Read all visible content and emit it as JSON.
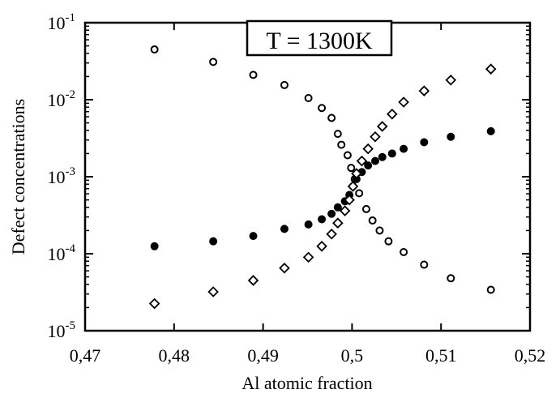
{
  "chart_data": {
    "type": "scatter",
    "xlabel": "Al atomic fraction",
    "ylabel": "Defect concentrations",
    "x_scale": "linear",
    "y_scale": "log",
    "xlim": [
      0.47,
      0.52
    ],
    "ylim_exp": [
      -5,
      -1
    ],
    "x_ticks": [
      0.47,
      0.48,
      0.49,
      0.5,
      0.51,
      0.52
    ],
    "x_tick_labels": [
      "0,47",
      "0,48",
      "0,49",
      "0,5",
      "0,51",
      "0,52"
    ],
    "y_ticks_exp": [
      -5,
      -4,
      -3,
      -2,
      -1
    ],
    "y_tick_base": "10",
    "y_tick_exponents": [
      "-5",
      "-4",
      "-3",
      "-2",
      "-1"
    ],
    "grid": false,
    "annotation": "T = 1300K",
    "series": [
      {
        "marker": "open-circle",
        "points": [
          [
            0.4778,
            0.045
          ],
          [
            0.4844,
            0.031
          ],
          [
            0.4889,
            0.021
          ],
          [
            0.4924,
            0.0155
          ],
          [
            0.4951,
            0.0105
          ],
          [
            0.4966,
            0.0078
          ],
          [
            0.4977,
            0.0058
          ],
          [
            0.4984,
            0.0036
          ],
          [
            0.4988,
            0.0026
          ],
          [
            0.4995,
            0.0019
          ],
          [
            0.4999,
            0.0013
          ],
          [
            0.5003,
            0.00093
          ],
          [
            0.5008,
            0.00061
          ],
          [
            0.5016,
            0.00038
          ],
          [
            0.5023,
            0.00027
          ],
          [
            0.5031,
            0.0002
          ],
          [
            0.5041,
            0.000145
          ],
          [
            0.5058,
            0.000105
          ],
          [
            0.5081,
            7.2e-05
          ],
          [
            0.5111,
            4.8e-05
          ],
          [
            0.5156,
            3.4e-05
          ]
        ]
      },
      {
        "marker": "filled-circle",
        "points": [
          [
            0.4778,
            0.000125
          ],
          [
            0.4844,
            0.000145
          ],
          [
            0.4889,
            0.00017
          ],
          [
            0.4924,
            0.00021
          ],
          [
            0.4951,
            0.00024
          ],
          [
            0.4966,
            0.00028
          ],
          [
            0.4977,
            0.00033
          ],
          [
            0.4984,
            0.0004
          ],
          [
            0.4992,
            0.00048
          ],
          [
            0.4997,
            0.00058
          ],
          [
            0.5001,
            0.00075
          ],
          [
            0.5005,
            0.00093
          ],
          [
            0.5011,
            0.00115
          ],
          [
            0.5018,
            0.0014
          ],
          [
            0.5026,
            0.0016
          ],
          [
            0.5034,
            0.0018
          ],
          [
            0.5045,
            0.002
          ],
          [
            0.5058,
            0.0023
          ],
          [
            0.5081,
            0.0028
          ],
          [
            0.5111,
            0.0033
          ],
          [
            0.5156,
            0.0039
          ]
        ]
      },
      {
        "marker": "open-diamond",
        "points": [
          [
            0.4778,
            2.25e-05
          ],
          [
            0.4844,
            3.2e-05
          ],
          [
            0.4889,
            4.5e-05
          ],
          [
            0.4924,
            6.5e-05
          ],
          [
            0.4951,
            9e-05
          ],
          [
            0.4966,
            0.000125
          ],
          [
            0.4977,
            0.00018
          ],
          [
            0.4984,
            0.00025
          ],
          [
            0.4992,
            0.00036
          ],
          [
            0.4997,
            0.0005
          ],
          [
            0.5001,
            0.00075
          ],
          [
            0.5005,
            0.0011
          ],
          [
            0.5011,
            0.0016
          ],
          [
            0.5018,
            0.0023
          ],
          [
            0.5026,
            0.0033
          ],
          [
            0.5034,
            0.0045
          ],
          [
            0.5045,
            0.0065
          ],
          [
            0.5058,
            0.0093
          ],
          [
            0.5081,
            0.013
          ],
          [
            0.5111,
            0.018
          ],
          [
            0.5156,
            0.025
          ]
        ]
      }
    ]
  }
}
